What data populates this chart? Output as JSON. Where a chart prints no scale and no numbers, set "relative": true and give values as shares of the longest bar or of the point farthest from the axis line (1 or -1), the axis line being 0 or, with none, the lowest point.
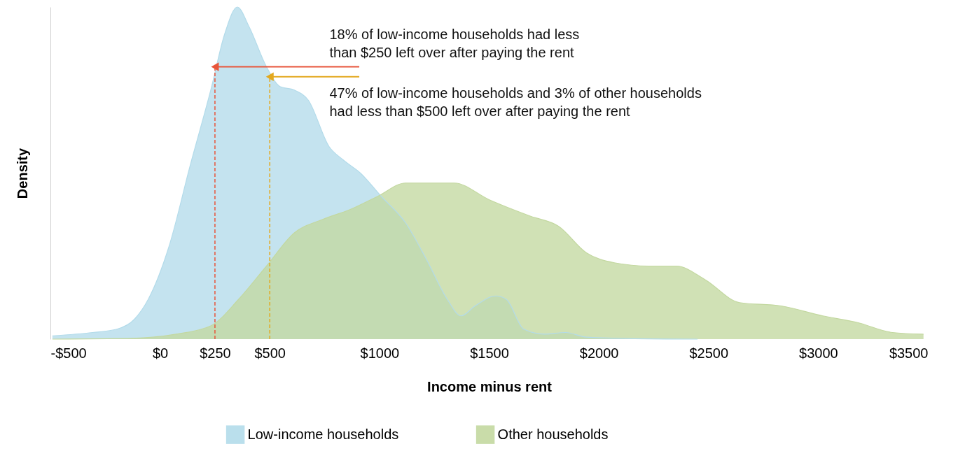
{
  "chart_data": {
    "type": "area",
    "relative": true,
    "xlabel": "Income minus rent",
    "ylabel": "Density",
    "xlim": [
      -500,
      3500
    ],
    "xticks": [
      {
        "value": -500,
        "label": "-$500"
      },
      {
        "value": 0,
        "label": "$0"
      },
      {
        "value": 250,
        "label": "$250"
      },
      {
        "value": 500,
        "label": "$500"
      },
      {
        "value": 1000,
        "label": "$1000"
      },
      {
        "value": 1500,
        "label": "$1500"
      },
      {
        "value": 2000,
        "label": "$2000"
      },
      {
        "value": 2500,
        "label": "$2500"
      },
      {
        "value": 3000,
        "label": "$3000"
      },
      {
        "value": 3500,
        "label": "$3500"
      }
    ],
    "series": [
      {
        "name": "Low-income households",
        "color": "#b3dbea",
        "x": [
          -491,
          -307,
          -197,
          -117,
          -54,
          41,
          136,
          231,
          295,
          352,
          406,
          485,
          548,
          612,
          675,
          770,
          834,
          913,
          1008,
          1119,
          1214,
          1309,
          1372,
          1436,
          1531,
          1578,
          1658,
          1753,
          1848,
          1943,
          2133,
          2450
        ],
        "values": [
          0.01,
          0.02,
          0.03,
          0.06,
          0.12,
          0.28,
          0.52,
          0.75,
          0.92,
          1.0,
          0.94,
          0.82,
          0.76,
          0.75,
          0.72,
          0.58,
          0.54,
          0.5,
          0.43,
          0.35,
          0.24,
          0.12,
          0.07,
          0.1,
          0.13,
          0.12,
          0.03,
          0.015,
          0.02,
          0.006,
          0.002,
          0
        ]
      },
      {
        "name": "Other households",
        "color": "#c3d8a0",
        "x": [
          -491,
          -149,
          73,
          231,
          358,
          485,
          612,
          739,
          865,
          992,
          1119,
          1214,
          1341,
          1499,
          1689,
          1816,
          1943,
          2070,
          2228,
          2355,
          2482,
          2641,
          2831,
          3021,
          3179,
          3338,
          3480
        ],
        "values": [
          0,
          0.002,
          0.015,
          0.04,
          0.12,
          0.22,
          0.32,
          0.36,
          0.39,
          0.43,
          0.47,
          0.47,
          0.47,
          0.42,
          0.37,
          0.34,
          0.26,
          0.23,
          0.22,
          0.22,
          0.18,
          0.11,
          0.1,
          0.07,
          0.05,
          0.02,
          0.015
        ]
      }
    ],
    "ref_lines": [
      {
        "axis": "x",
        "value": 250,
        "color": "#e8553a",
        "line_style": "dashed"
      },
      {
        "axis": "x",
        "value": 500,
        "color": "#e3a81e",
        "line_style": "dashed"
      }
    ],
    "annotations": [
      {
        "text": "18% of low-income households had less\nthan $250 left over after paying the rent",
        "x": 250,
        "y": 0.82
      },
      {
        "text": "47% of low-income households and 3% of other households\nhad less than $500 left over after paying the rent",
        "x": 500,
        "y": 0.79
      }
    ],
    "grid": false,
    "legend": "bottom"
  }
}
